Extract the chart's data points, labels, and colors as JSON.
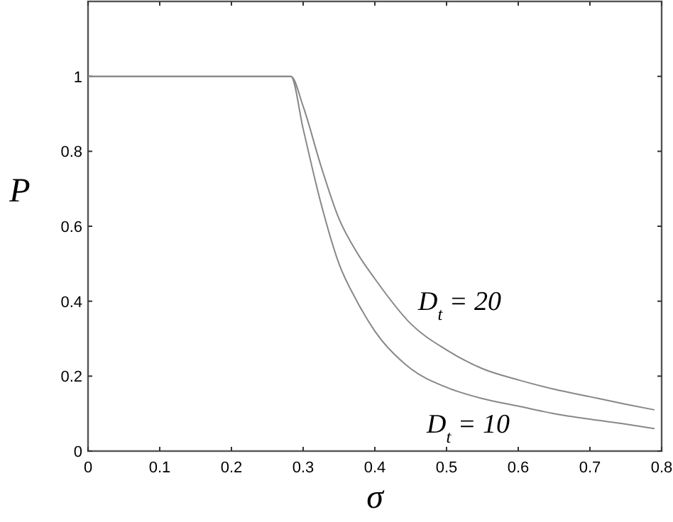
{
  "chart_data": {
    "type": "line",
    "xlabel": "σ",
    "ylabel": "P",
    "xlim": [
      0,
      0.8
    ],
    "ylim": [
      0,
      1.2
    ],
    "xticks": [
      0,
      0.1,
      0.2,
      0.3,
      0.4,
      0.5,
      0.6,
      0.7,
      0.8
    ],
    "yticks": [
      0,
      0.2,
      0.4,
      0.6,
      0.8,
      1
    ],
    "grid": false,
    "marker": "none",
    "line_style": "solid",
    "series": [
      {
        "name": "D$_{t}$ = 20",
        "color": "#888888",
        "x": [
          0,
          0.283,
          0.3,
          0.325,
          0.35,
          0.375,
          0.4,
          0.45,
          0.5,
          0.55,
          0.6,
          0.65,
          0.7,
          0.75,
          0.79
        ],
        "values": [
          1,
          1,
          0.92,
          0.76,
          0.62,
          0.53,
          0.46,
          0.34,
          0.27,
          0.22,
          0.19,
          0.165,
          0.145,
          0.125,
          0.11
        ]
      },
      {
        "name": "D$_{t}$ = 10",
        "color": "#888888",
        "x": [
          0,
          0.283,
          0.3,
          0.325,
          0.35,
          0.375,
          0.4,
          0.45,
          0.5,
          0.55,
          0.6,
          0.65,
          0.7,
          0.75,
          0.79
        ],
        "values": [
          1,
          1,
          0.86,
          0.66,
          0.5,
          0.4,
          0.32,
          0.22,
          0.17,
          0.14,
          0.12,
          0.1,
          0.085,
          0.072,
          0.06
        ]
      }
    ]
  }
}
